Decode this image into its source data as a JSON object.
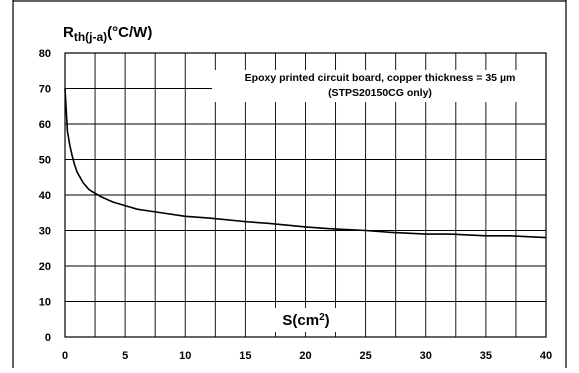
{
  "chart_data": {
    "type": "line",
    "title": "",
    "ylabel_main": "R",
    "ylabel_sub": "th(j-a)",
    "ylabel_unit": "(°C/W)",
    "xlabel_main": "S(cm",
    "xlabel_sup": "2",
    "xlabel_close": ")",
    "annotation_line1": "Epoxy printed circuit board, copper thickness = 35 µm",
    "annotation_line2": "(STPS20150CG only)",
    "xlim": [
      0,
      40
    ],
    "ylim": [
      0,
      80
    ],
    "x_ticks": [
      0,
      5,
      10,
      15,
      20,
      25,
      30,
      35,
      40
    ],
    "y_ticks": [
      0,
      10,
      20,
      30,
      40,
      50,
      60,
      70,
      80
    ],
    "grid": true,
    "x_grid_step": 2.5,
    "series": [
      {
        "x": [
          0,
          0.2,
          0.4,
          0.6,
          0.8,
          1,
          1.5,
          2,
          3,
          4,
          5,
          6,
          7,
          8,
          10,
          12,
          15,
          17,
          20,
          22,
          25,
          27,
          30,
          32,
          35,
          37,
          40
        ],
        "values": [
          70,
          58,
          54,
          51,
          48.5,
          46.5,
          43.5,
          41.5,
          39.5,
          38,
          37,
          36,
          35.5,
          35,
          34,
          33.5,
          32.5,
          32,
          31,
          30.5,
          30,
          29.5,
          29,
          29,
          28.5,
          28.5,
          28
        ]
      }
    ]
  },
  "colors": {
    "curve": "#000000",
    "grid": "#000000",
    "border": "#000000"
  }
}
